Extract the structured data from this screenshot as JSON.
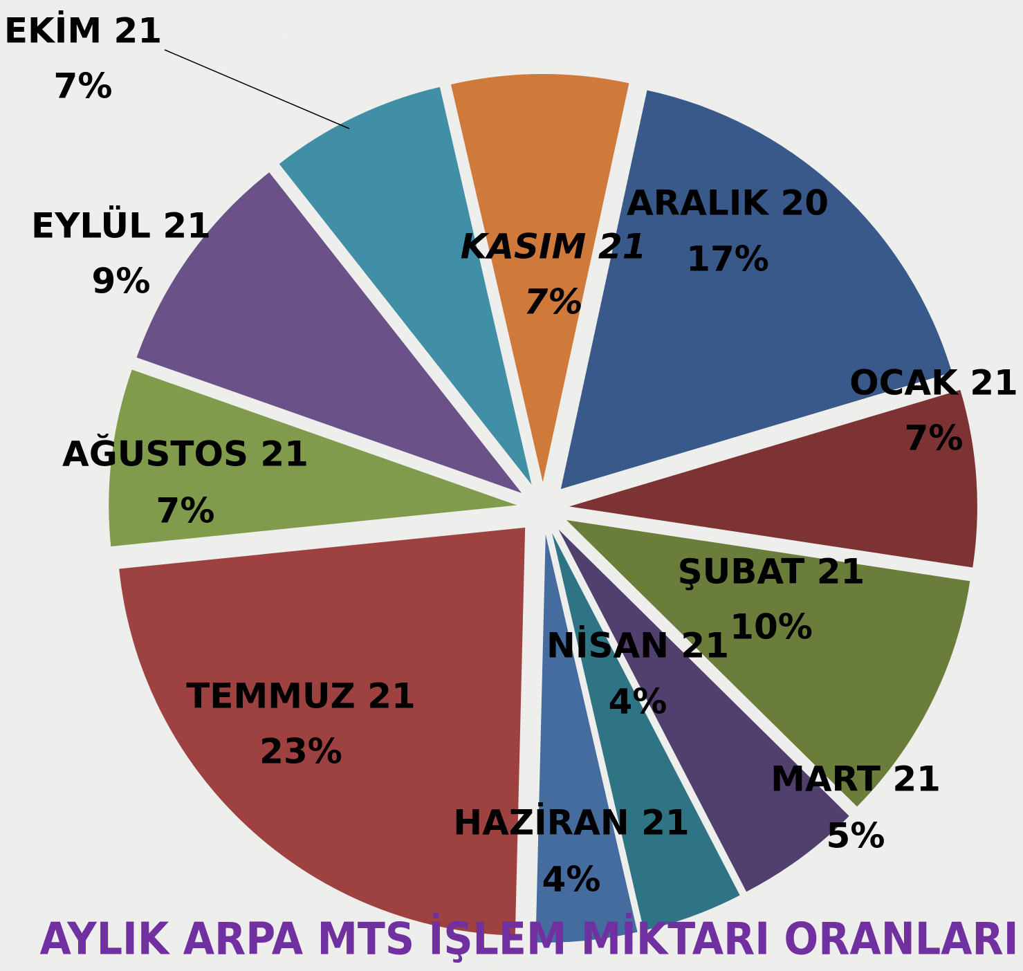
{
  "chart_data": {
    "type": "pie",
    "title": "AYLIK ARPA MTS İŞLEM MİKTARI ORANLARI",
    "categories": [
      "KASIM 21",
      "ARALIK 20",
      "OCAK 21",
      "ŞUBAT 21",
      "MART 21",
      "NİSAN 21",
      "HAZİRAN 21",
      "TEMMUZ 21",
      "AĞUSTOS 21",
      "EYLÜL 21",
      "EKİM 21"
    ],
    "values": [
      7,
      17,
      7,
      10,
      5,
      4,
      4,
      23,
      7,
      9,
      7
    ],
    "value_labels": [
      "7%",
      "17%",
      "7%",
      "10%",
      "5%",
      "4%",
      "4%",
      "23%",
      "7%",
      "9%",
      "7%"
    ],
    "colors": [
      "#cf7a3b",
      "#38598a",
      "#7d3333",
      "#6a7d3a",
      "#51406e",
      "#2f7484",
      "#456c9f",
      "#9e4141",
      "#7f9b4b",
      "#6a5289",
      "#418fa7"
    ]
  }
}
